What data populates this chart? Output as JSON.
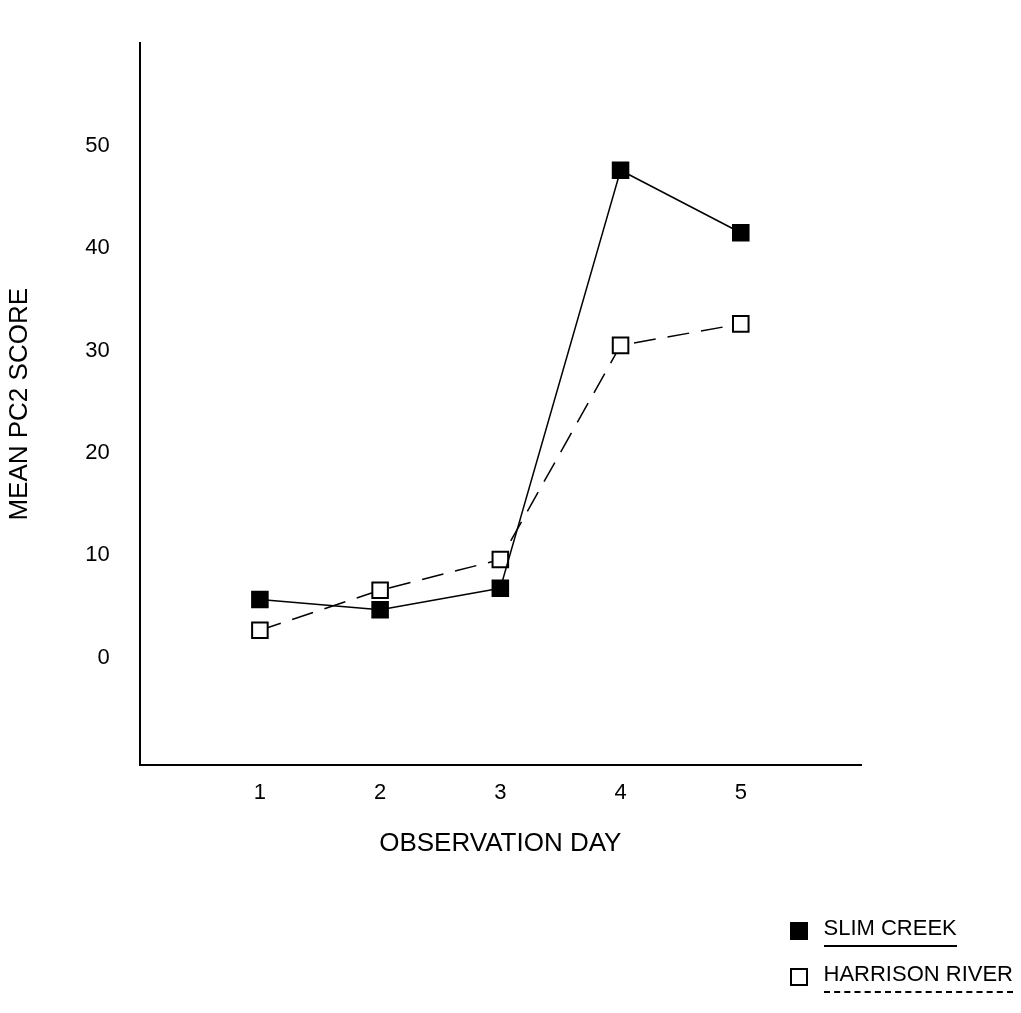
{
  "chart_data": {
    "type": "line",
    "xlabel": "OBSERVATION DAY",
    "ylabel": "MEAN PC2 SCORE",
    "x": [
      1,
      2,
      3,
      4,
      5
    ],
    "series": [
      {
        "name": "SLIM CREEK",
        "color": "#000000",
        "line_style": "solid",
        "values": [
          5.7,
          4.7,
          6.8,
          47.6,
          41.5
        ]
      },
      {
        "name": "HARRISON RIVER",
        "color": "#ffffff",
        "line_style": "dashed",
        "values": [
          2.7,
          6.6,
          9.6,
          30.5,
          32.6
        ]
      }
    ],
    "xlim": [
      0,
      6
    ],
    "ylim": [
      -10.5,
      60
    ],
    "xticks": [
      1,
      2,
      3,
      4,
      5
    ],
    "yticks": [
      0,
      10,
      20,
      30,
      40,
      50
    ],
    "marker": "square",
    "grid": false,
    "legend": "bottom right"
  }
}
